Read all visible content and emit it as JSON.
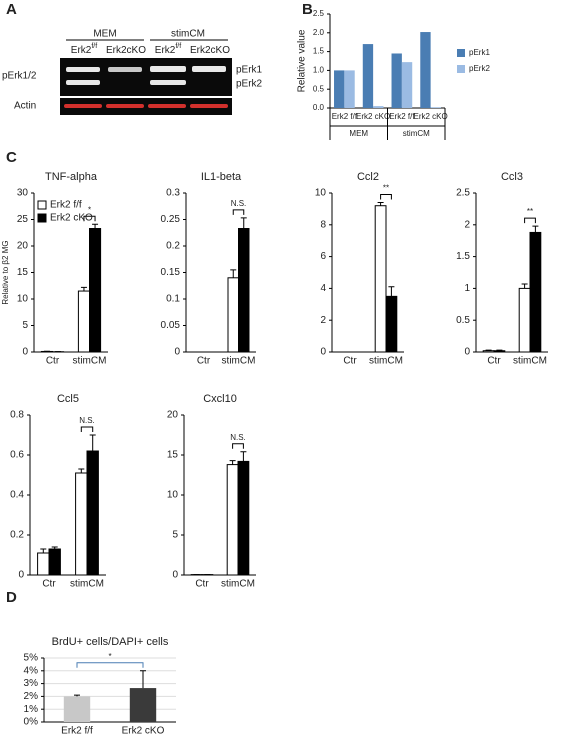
{
  "panel_labels": [
    "A",
    "B",
    "C",
    "D"
  ],
  "blot": {
    "groups": [
      "MEM",
      "stimCM"
    ],
    "lanes": [
      {
        "text": "Erk2",
        "sup": "f/f"
      },
      {
        "text": "Erk2cKO"
      },
      {
        "text": "Erk2",
        "sup": "f/f"
      },
      {
        "text": "Erk2cKO"
      }
    ],
    "left_labels": [
      "pErk1/2",
      "Actin"
    ],
    "right_labels": [
      "pErk1",
      "pErk2"
    ]
  },
  "chart_data": [
    {
      "type": "bar",
      "y_label": "Relative value",
      "categories": [
        "Erk2 f/f",
        "Erk2 cKO",
        "Erk2 f/f",
        "Erk2 cKO"
      ],
      "group_labels": [
        "MEM",
        "stimCM"
      ],
      "series": [
        {
          "name": "pErk1",
          "color": "#4a7db3",
          "values": [
            1.0,
            1.7,
            1.45,
            2.02
          ]
        },
        {
          "name": "pErk2",
          "color": "#9bbbe3",
          "values": [
            1.0,
            0.05,
            1.22,
            0.02
          ]
        }
      ],
      "ylim": [
        0,
        2.5
      ],
      "yticks": [
        {
          "value": 0,
          "label": "0.0"
        },
        {
          "value": 0.5,
          "label": "0.5"
        },
        {
          "value": 1,
          "label": "1.0"
        },
        {
          "value": 1.5,
          "label": "1.5"
        },
        {
          "value": 2,
          "label": "2.0"
        },
        {
          "value": 2.5,
          "label": "2.5"
        }
      ],
      "legend": "right"
    },
    {
      "type": "bar",
      "title": "TNF-alpha",
      "y_label": "Relative to β2 MG",
      "categories": [
        "Ctr",
        "stimCM"
      ],
      "bar_edge": "#000",
      "legend": "upper left",
      "bracket": "series",
      "annotation": "*",
      "series": [
        {
          "name": "Erk2 f/f",
          "color": "#ffffff",
          "values": [
            0.1,
            11.5
          ],
          "errors": [
            0.05,
            0.7
          ]
        },
        {
          "name": "Erk2 cKO",
          "color": "#000000",
          "values": [
            0.05,
            23.3
          ],
          "errors": [
            0.02,
            0.8
          ]
        }
      ],
      "ylim": [
        0,
        30
      ],
      "yticks": [
        0,
        5,
        10,
        15,
        20,
        25,
        30
      ]
    },
    {
      "type": "bar",
      "title": "IL1-beta",
      "categories": [
        "Ctr",
        "stimCM"
      ],
      "bar_edge": "#000",
      "bracket": "series",
      "annotation": "N.S.",
      "series": [
        {
          "name": "Erk2 f/f",
          "color": "#ffffff",
          "values": [
            0,
            0.14
          ],
          "errors": [
            0,
            0.015
          ]
        },
        {
          "name": "Erk2 cKO",
          "color": "#000000",
          "values": [
            0,
            0.233
          ],
          "errors": [
            0,
            0.02
          ]
        }
      ],
      "ylim": [
        0,
        0.3
      ],
      "yticks": [
        0,
        0.05,
        0.1,
        0.15,
        0.2,
        0.25,
        0.3
      ]
    },
    {
      "type": "bar",
      "title": "Ccl2",
      "categories": [
        "Ctr",
        "stimCM"
      ],
      "bar_edge": "#000",
      "bracket": "series",
      "annotation": "**",
      "series": [
        {
          "name": "Erk2 f/f",
          "color": "#ffffff",
          "values": [
            0,
            9.2
          ],
          "errors": [
            0,
            0.2
          ]
        },
        {
          "name": "Erk2 cKO",
          "color": "#000000",
          "values": [
            0,
            3.5
          ],
          "errors": [
            0,
            0.6
          ]
        }
      ],
      "ylim": [
        0,
        10
      ],
      "yticks": [
        0,
        2,
        4,
        6,
        8,
        10
      ]
    },
    {
      "type": "bar",
      "title": "Ccl3",
      "categories": [
        "Ctr",
        "stimCM"
      ],
      "bar_edge": "#000",
      "bracket": "series",
      "annotation": "**",
      "series": [
        {
          "name": "Erk2 f/f",
          "color": "#ffffff",
          "values": [
            0.02,
            1.0
          ],
          "errors": [
            0.01,
            0.07
          ]
        },
        {
          "name": "Erk2 cKO",
          "color": "#000000",
          "values": [
            0.02,
            1.88
          ],
          "errors": [
            0.01,
            0.1
          ]
        }
      ],
      "ylim": [
        0,
        2.5
      ],
      "yticks": [
        0,
        0.5,
        1,
        1.5,
        2,
        2.5
      ]
    },
    {
      "type": "bar",
      "title": "Ccl5",
      "categories": [
        "Ctr",
        "stimCM"
      ],
      "bar_edge": "#000",
      "bracket": "series",
      "annotation": "N.S.",
      "series": [
        {
          "name": "Erk2 f/f",
          "color": "#ffffff",
          "values": [
            0.11,
            0.51
          ],
          "errors": [
            0.02,
            0.02
          ]
        },
        {
          "name": "Erk2 cKO",
          "color": "#000000",
          "values": [
            0.13,
            0.62
          ],
          "errors": [
            0.01,
            0.08
          ]
        }
      ],
      "ylim": [
        0,
        0.8
      ],
      "yticks": [
        0,
        0.2,
        0.4,
        0.6,
        0.8
      ]
    },
    {
      "type": "bar",
      "title": "Cxcl10",
      "categories": [
        "Ctr",
        "stimCM"
      ],
      "bar_edge": "#000",
      "bracket": "series",
      "annotation": "N.S.",
      "series": [
        {
          "name": "Erk2 f/f",
          "color": "#ffffff",
          "values": [
            0.05,
            13.8
          ],
          "errors": [
            0,
            0.5
          ]
        },
        {
          "name": "Erk2 cKO",
          "color": "#000000",
          "values": [
            0.05,
            14.2
          ],
          "errors": [
            0,
            1.2
          ]
        }
      ],
      "ylim": [
        0,
        20
      ],
      "yticks": [
        0,
        5,
        10,
        15,
        20
      ]
    },
    {
      "type": "bar",
      "title": "BrdU+ cells/DAPI+ cells",
      "categories": [
        "Erk2 f/f",
        "Erk2 cKO"
      ],
      "bracket": "categories",
      "annotation": "*",
      "grid": true,
      "series": [
        {
          "colors": [
            "#c8c8c8",
            "#3a3a3a"
          ],
          "values": [
            2.0,
            2.65
          ],
          "errors": [
            0.1,
            1.35
          ]
        }
      ],
      "ylim": [
        0,
        5
      ],
      "yticks": [
        {
          "value": 0,
          "label": "0%"
        },
        {
          "value": 1,
          "label": "1%"
        },
        {
          "value": 2,
          "label": "2%"
        },
        {
          "value": 3,
          "label": "3%"
        },
        {
          "value": 4,
          "label": "4%"
        },
        {
          "value": 5,
          "label": "5%"
        }
      ]
    }
  ]
}
